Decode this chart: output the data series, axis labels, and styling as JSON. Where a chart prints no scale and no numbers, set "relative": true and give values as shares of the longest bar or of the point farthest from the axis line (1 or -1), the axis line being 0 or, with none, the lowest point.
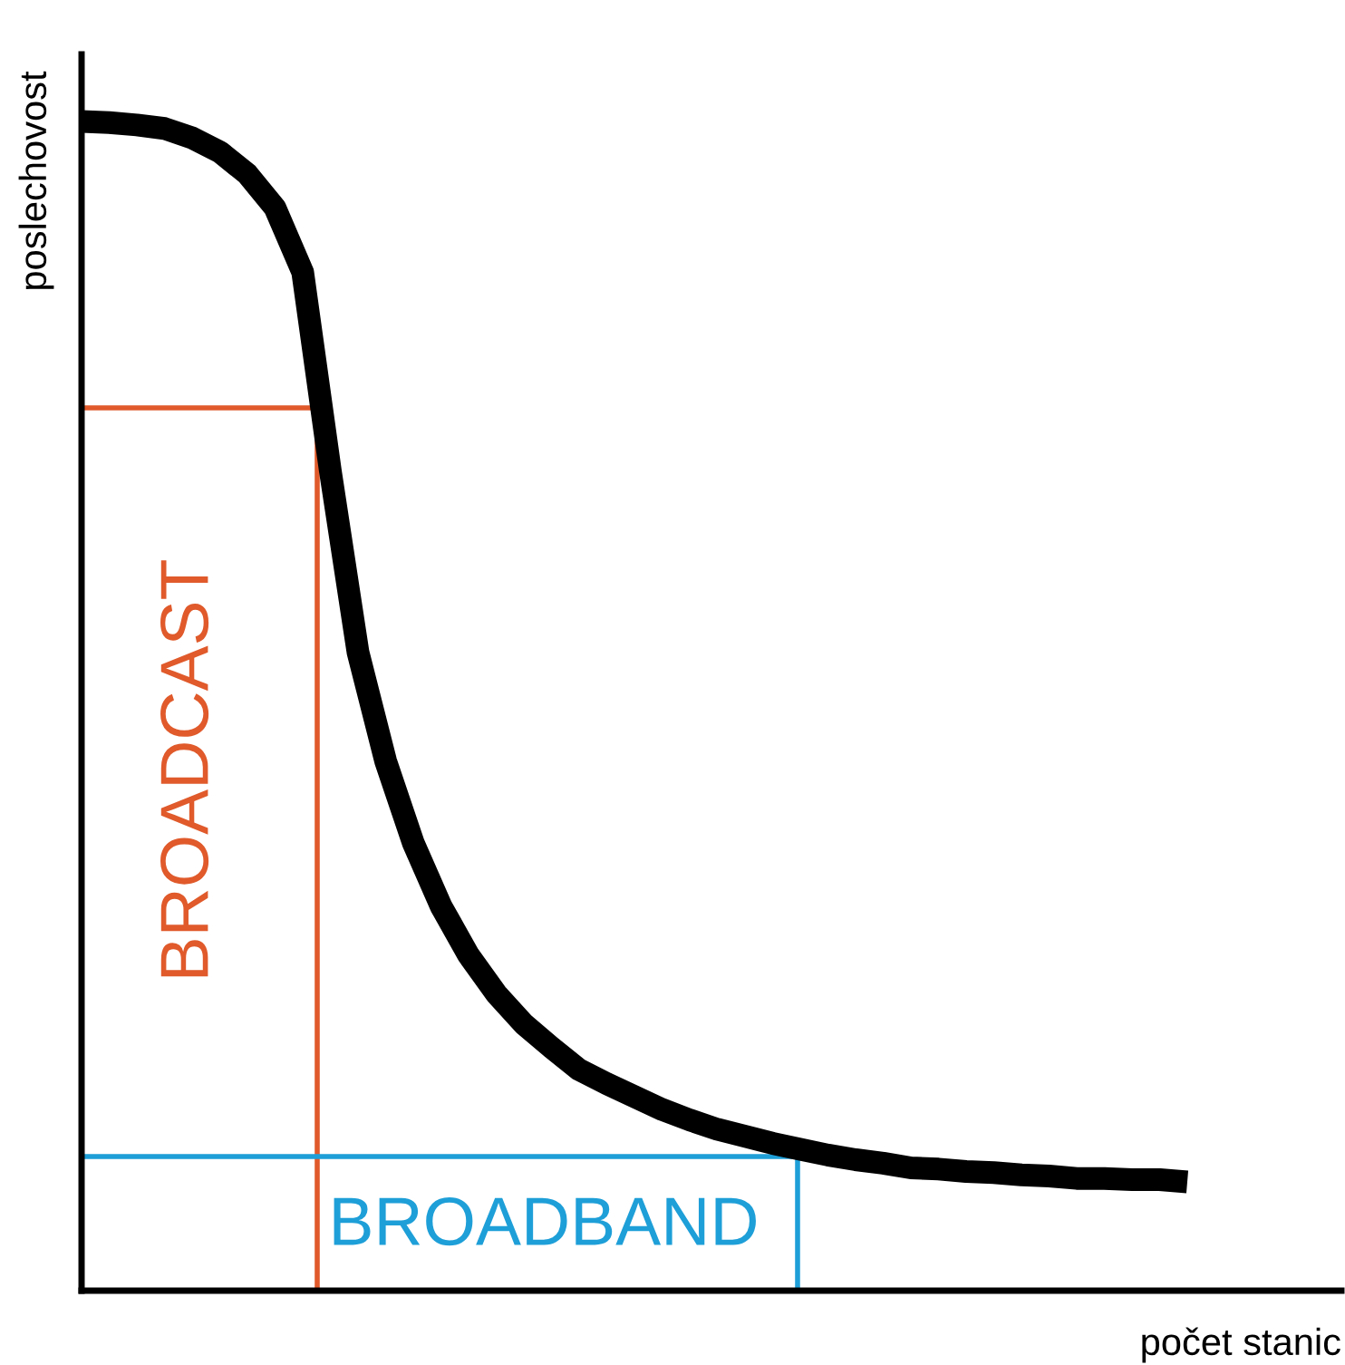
{
  "chart_data": {
    "type": "line",
    "relative": true,
    "xlabel": "počet stanic",
    "ylabel": "poslechovost",
    "categories": [
      null,
      null,
      null,
      null,
      null,
      null,
      null,
      null,
      null,
      null,
      null,
      null,
      null,
      null,
      null,
      null,
      null,
      null,
      null,
      null,
      null,
      null,
      null,
      null,
      null,
      null,
      null,
      null,
      null,
      null,
      null,
      null,
      null,
      null,
      null,
      null,
      null,
      null,
      null,
      null,
      null
    ],
    "series": [
      {
        "color": "#000000",
        "values": [
          1,
          0.999,
          0.997,
          0.994,
          0.986,
          0.974,
          0.955,
          0.926,
          0.871,
          0.701,
          0.546,
          0.453,
          0.383,
          0.329,
          0.287,
          0.254,
          0.228,
          0.208,
          0.189,
          0.177,
          0.166,
          0.155,
          0.146,
          0.138,
          0.132,
          0.126,
          0.121,
          0.116,
          0.112,
          0.109,
          0.105,
          0.104,
          0.102,
          0.101,
          0.099,
          0.098,
          0.096,
          0.096,
          0.095,
          0.095,
          0.093
        ]
      }
    ],
    "annotations": [
      "BROADCAST",
      "BROADBAND"
    ],
    "grid": false,
    "marker": "none",
    "line_style": "solid"
  }
}
